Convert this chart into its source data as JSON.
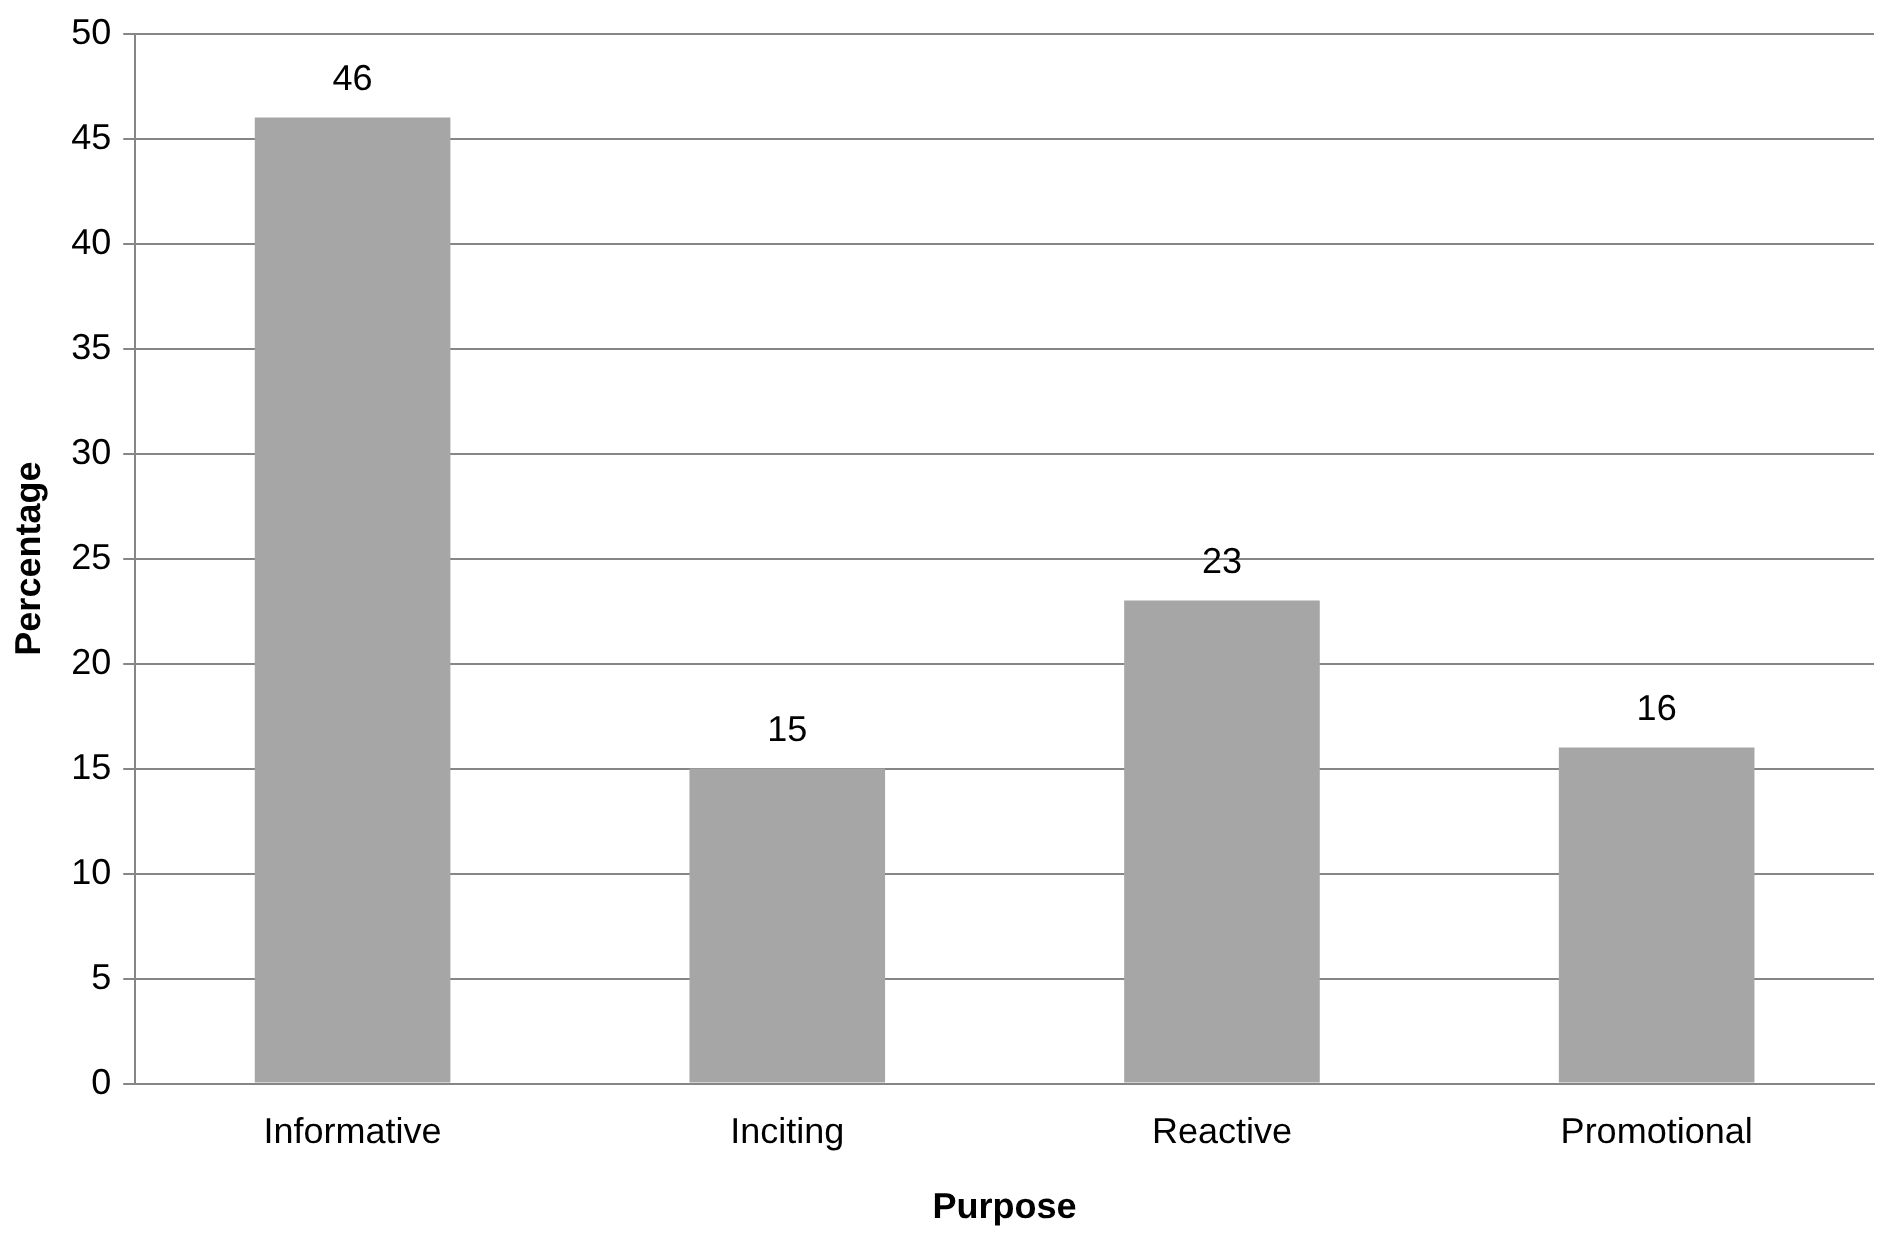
{
  "chart_data": {
    "type": "bar",
    "xlabel": "Purpose",
    "ylabel": "Percentage",
    "categories": [
      "Informative",
      "Inciting",
      "Reactive",
      "Promotional"
    ],
    "values": [
      46,
      15,
      23,
      16
    ],
    "color": "#a6a6a6",
    "ylim": [
      0,
      50
    ],
    "yticks": [
      0,
      5,
      10,
      15,
      20,
      25,
      30,
      35,
      40,
      45,
      50
    ],
    "grid": "y",
    "data_labels": true
  }
}
